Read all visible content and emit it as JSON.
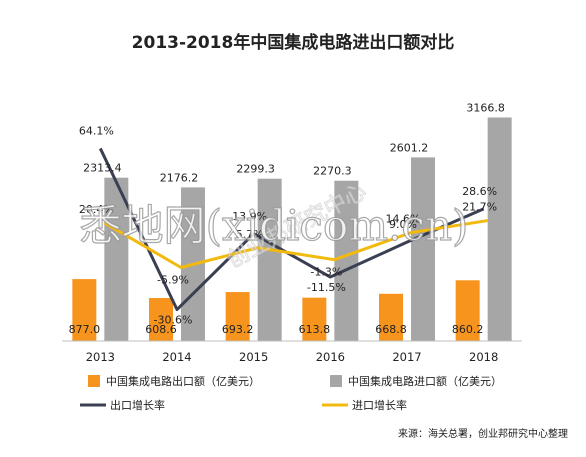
{
  "chart_data": {
    "type": "bar",
    "title": "2013-2018年中国集成电路进出口额对比",
    "categories": [
      "2013",
      "2014",
      "2015",
      "2016",
      "2017",
      "2018"
    ],
    "series": [
      {
        "name": "中国集成电路出口额（亿美元）",
        "type": "bar",
        "color": "#f7941d",
        "values": [
          877.0,
          608.6,
          693.2,
          613.8,
          668.8,
          860.2
        ],
        "labels": [
          "877.0",
          "608.6",
          "693.2",
          "613.8",
          "668.8",
          "860.2"
        ]
      },
      {
        "name": "中国集成电路进口额（亿美元）",
        "type": "bar",
        "color": "#a6a6a6",
        "values": [
          2313.4,
          2176.2,
          2299.3,
          2270.3,
          2601.2,
          3166.8
        ],
        "labels": [
          "2313.4",
          "2176.2",
          "2299.3",
          "2270.3",
          "2601.2",
          "3166.8"
        ]
      },
      {
        "name": "出口增长率",
        "type": "line",
        "color": "#3a3f52",
        "values": [
          64.1,
          -30.6,
          13.9,
          -11.5,
          9.0,
          28.6
        ],
        "labels": [
          "64.1%",
          "-30.6%",
          "13.9%",
          "-11.5%",
          "9.0%",
          "28.6%"
        ]
      },
      {
        "name": "进口增长率",
        "type": "line",
        "color": "#f2b90f",
        "values": [
          20.4,
          -5.9,
          5.7,
          -1.3,
          14.6,
          21.7
        ],
        "labels": [
          "20.4%",
          "-5.9%",
          "5.7%",
          "-1.3%",
          "14.6%",
          "21.7%"
        ]
      }
    ],
    "bar_ylim": [
      0,
      3400
    ],
    "rate_ylim": [
      -45,
      82
    ],
    "grid": false,
    "legend_position": "bottom",
    "source": "来源：海关总署，创业邦研究中心整理"
  },
  "watermark": {
    "text": "悉地网(xidicom.cn)",
    "sub": "创业邦研究中心"
  }
}
